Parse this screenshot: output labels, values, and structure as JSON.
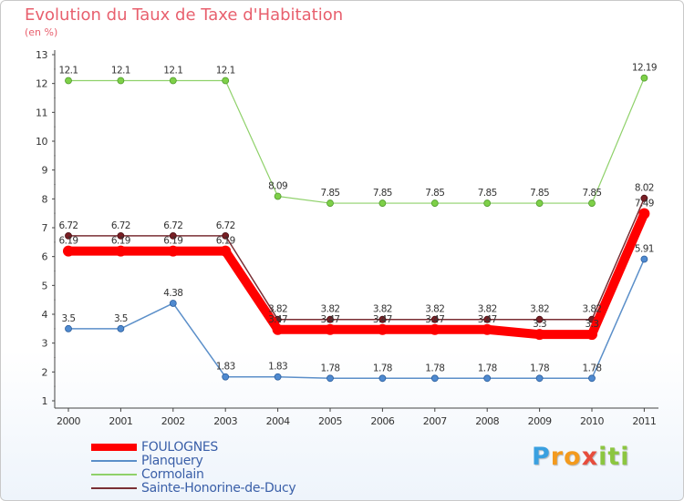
{
  "title": "Evolution du Taux de Taxe d'Habitation",
  "subtitle": "(en %)",
  "chart_data": {
    "type": "line",
    "categories": [
      "2000",
      "2001",
      "2002",
      "2003",
      "2004",
      "2005",
      "2006",
      "2007",
      "2008",
      "2009",
      "2010",
      "2011"
    ],
    "ylim": [
      1,
      13
    ],
    "yticks": [
      1,
      2,
      3,
      4,
      5,
      6,
      7,
      8,
      9,
      10,
      11,
      12,
      13
    ],
    "grid": false,
    "legend_position": "bottom-left",
    "series": [
      {
        "name": "FOULOGNES",
        "color": "#ff0000",
        "values": [
          6.19,
          6.19,
          6.19,
          6.19,
          3.47,
          3.47,
          3.47,
          3.47,
          3.47,
          3.3,
          3.3,
          7.49
        ],
        "labels": [
          "6.19",
          "6.19",
          "6.19",
          "6.19",
          "3.47",
          "3.47",
          "3.47",
          "3.47",
          "3.47",
          "3.3",
          "3.3",
          "7.49"
        ]
      },
      {
        "name": "Planquery",
        "color": "#5b8fc9",
        "values": [
          3.5,
          3.5,
          4.38,
          1.83,
          1.83,
          1.78,
          1.78,
          1.78,
          1.78,
          1.78,
          1.78,
          5.91
        ],
        "labels": [
          "3.5",
          "3.5",
          "4.38",
          "1.83",
          "1.83",
          "1.78",
          "1.78",
          "1.78",
          "1.78",
          "1.78",
          "1.78",
          "5.91"
        ]
      },
      {
        "name": "Cormolain",
        "color": "#8fd16a",
        "values": [
          12.1,
          12.1,
          12.1,
          12.1,
          8.09,
          7.85,
          7.85,
          7.85,
          7.85,
          7.85,
          7.85,
          12.19
        ],
        "labels": [
          "12.1",
          "12.1",
          "12.1",
          "12.1",
          "8.09",
          "7.85",
          "7.85",
          "7.85",
          "7.85",
          "7.85",
          "7.85",
          "12.19"
        ]
      },
      {
        "name": "Sainte-Honorine-de-Ducy",
        "color": "#7a2f35",
        "values": [
          6.72,
          6.72,
          6.72,
          6.72,
          3.82,
          3.82,
          3.82,
          3.82,
          3.82,
          3.82,
          3.82,
          8.02
        ],
        "labels": [
          "6.72",
          "6.72",
          "6.72",
          "6.72",
          "3.82",
          "3.82",
          "3.82",
          "3.82",
          "3.82",
          "3.82",
          "3.82",
          "8.02"
        ]
      }
    ]
  },
  "logo": {
    "letters": [
      "P",
      "r",
      "o",
      "x",
      "i",
      "t",
      "i"
    ],
    "colors": [
      "#3aa0e0",
      "#f39a1e",
      "#f39a1e",
      "#e74c3c",
      "#8cc63f",
      "#8cc63f",
      "#8cc63f"
    ]
  }
}
